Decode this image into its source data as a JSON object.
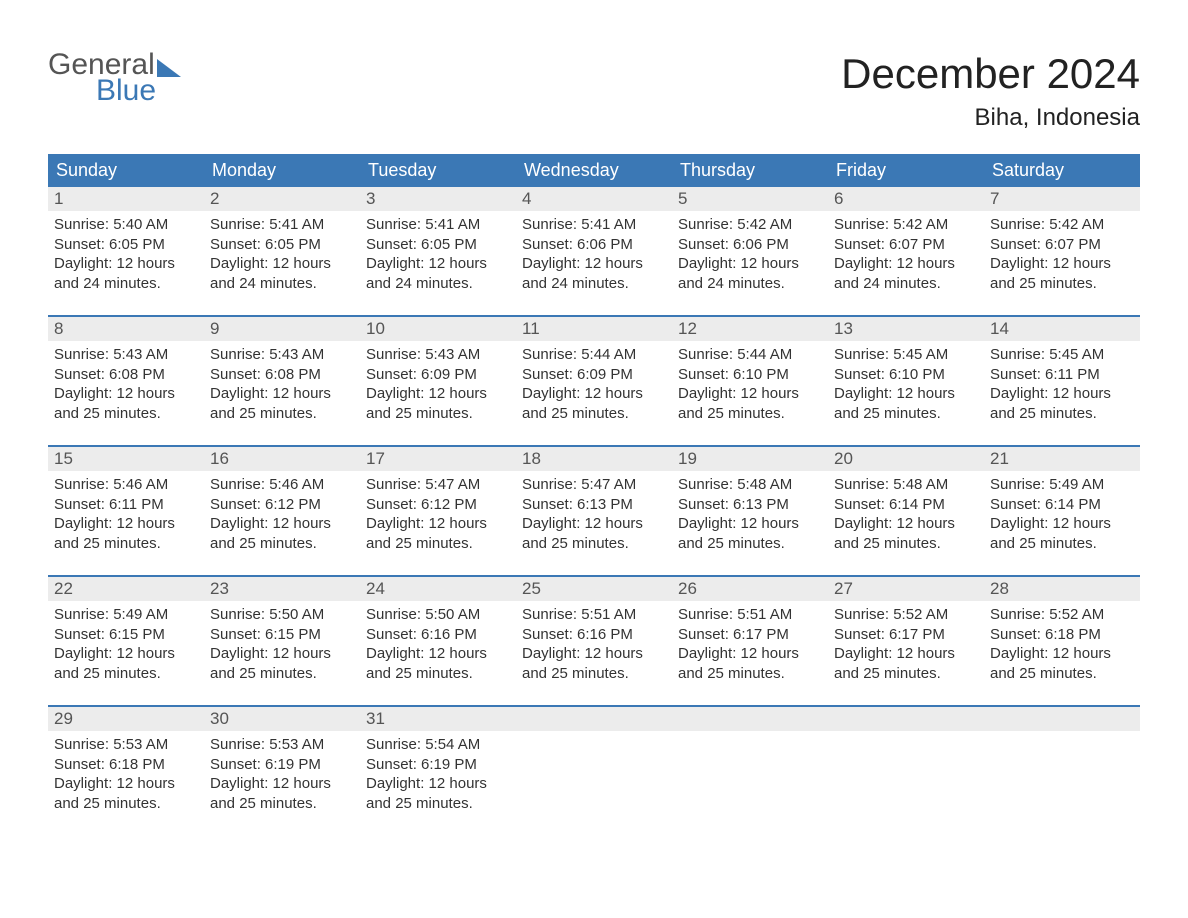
{
  "brand": {
    "word1": "General",
    "word2": "Blue"
  },
  "title": "December 2024",
  "location": "Biha, Indonesia",
  "colors": {
    "brand_blue": "#3b78b5",
    "header_bg": "#3b78b5",
    "header_text": "#ffffff",
    "daynum_bg": "#ececec",
    "daynum_text": "#555555",
    "body_text": "#333333",
    "page_bg": "#ffffff",
    "week_border": "#3b78b5"
  },
  "typography": {
    "title_fontsize": 42,
    "location_fontsize": 24,
    "weekday_fontsize": 18,
    "daynum_fontsize": 17,
    "body_fontsize": 15
  },
  "layout": {
    "columns": 7,
    "week_border_width": 2,
    "day_min_height": 128
  },
  "weekdays": [
    "Sunday",
    "Monday",
    "Tuesday",
    "Wednesday",
    "Thursday",
    "Friday",
    "Saturday"
  ],
  "labels": {
    "sunrise": "Sunrise:",
    "sunset": "Sunset:",
    "daylight": "Daylight:"
  },
  "weeks": [
    [
      {
        "n": "1",
        "sunrise": "5:40 AM",
        "sunset": "6:05 PM",
        "daylight": "12 hours and 24 minutes."
      },
      {
        "n": "2",
        "sunrise": "5:41 AM",
        "sunset": "6:05 PM",
        "daylight": "12 hours and 24 minutes."
      },
      {
        "n": "3",
        "sunrise": "5:41 AM",
        "sunset": "6:05 PM",
        "daylight": "12 hours and 24 minutes."
      },
      {
        "n": "4",
        "sunrise": "5:41 AM",
        "sunset": "6:06 PM",
        "daylight": "12 hours and 24 minutes."
      },
      {
        "n": "5",
        "sunrise": "5:42 AM",
        "sunset": "6:06 PM",
        "daylight": "12 hours and 24 minutes."
      },
      {
        "n": "6",
        "sunrise": "5:42 AM",
        "sunset": "6:07 PM",
        "daylight": "12 hours and 24 minutes."
      },
      {
        "n": "7",
        "sunrise": "5:42 AM",
        "sunset": "6:07 PM",
        "daylight": "12 hours and 25 minutes."
      }
    ],
    [
      {
        "n": "8",
        "sunrise": "5:43 AM",
        "sunset": "6:08 PM",
        "daylight": "12 hours and 25 minutes."
      },
      {
        "n": "9",
        "sunrise": "5:43 AM",
        "sunset": "6:08 PM",
        "daylight": "12 hours and 25 minutes."
      },
      {
        "n": "10",
        "sunrise": "5:43 AM",
        "sunset": "6:09 PM",
        "daylight": "12 hours and 25 minutes."
      },
      {
        "n": "11",
        "sunrise": "5:44 AM",
        "sunset": "6:09 PM",
        "daylight": "12 hours and 25 minutes."
      },
      {
        "n": "12",
        "sunrise": "5:44 AM",
        "sunset": "6:10 PM",
        "daylight": "12 hours and 25 minutes."
      },
      {
        "n": "13",
        "sunrise": "5:45 AM",
        "sunset": "6:10 PM",
        "daylight": "12 hours and 25 minutes."
      },
      {
        "n": "14",
        "sunrise": "5:45 AM",
        "sunset": "6:11 PM",
        "daylight": "12 hours and 25 minutes."
      }
    ],
    [
      {
        "n": "15",
        "sunrise": "5:46 AM",
        "sunset": "6:11 PM",
        "daylight": "12 hours and 25 minutes."
      },
      {
        "n": "16",
        "sunrise": "5:46 AM",
        "sunset": "6:12 PM",
        "daylight": "12 hours and 25 minutes."
      },
      {
        "n": "17",
        "sunrise": "5:47 AM",
        "sunset": "6:12 PM",
        "daylight": "12 hours and 25 minutes."
      },
      {
        "n": "18",
        "sunrise": "5:47 AM",
        "sunset": "6:13 PM",
        "daylight": "12 hours and 25 minutes."
      },
      {
        "n": "19",
        "sunrise": "5:48 AM",
        "sunset": "6:13 PM",
        "daylight": "12 hours and 25 minutes."
      },
      {
        "n": "20",
        "sunrise": "5:48 AM",
        "sunset": "6:14 PM",
        "daylight": "12 hours and 25 minutes."
      },
      {
        "n": "21",
        "sunrise": "5:49 AM",
        "sunset": "6:14 PM",
        "daylight": "12 hours and 25 minutes."
      }
    ],
    [
      {
        "n": "22",
        "sunrise": "5:49 AM",
        "sunset": "6:15 PM",
        "daylight": "12 hours and 25 minutes."
      },
      {
        "n": "23",
        "sunrise": "5:50 AM",
        "sunset": "6:15 PM",
        "daylight": "12 hours and 25 minutes."
      },
      {
        "n": "24",
        "sunrise": "5:50 AM",
        "sunset": "6:16 PM",
        "daylight": "12 hours and 25 minutes."
      },
      {
        "n": "25",
        "sunrise": "5:51 AM",
        "sunset": "6:16 PM",
        "daylight": "12 hours and 25 minutes."
      },
      {
        "n": "26",
        "sunrise": "5:51 AM",
        "sunset": "6:17 PM",
        "daylight": "12 hours and 25 minutes."
      },
      {
        "n": "27",
        "sunrise": "5:52 AM",
        "sunset": "6:17 PM",
        "daylight": "12 hours and 25 minutes."
      },
      {
        "n": "28",
        "sunrise": "5:52 AM",
        "sunset": "6:18 PM",
        "daylight": "12 hours and 25 minutes."
      }
    ],
    [
      {
        "n": "29",
        "sunrise": "5:53 AM",
        "sunset": "6:18 PM",
        "daylight": "12 hours and 25 minutes."
      },
      {
        "n": "30",
        "sunrise": "5:53 AM",
        "sunset": "6:19 PM",
        "daylight": "12 hours and 25 minutes."
      },
      {
        "n": "31",
        "sunrise": "5:54 AM",
        "sunset": "6:19 PM",
        "daylight": "12 hours and 25 minutes."
      },
      {
        "empty": true
      },
      {
        "empty": true
      },
      {
        "empty": true
      },
      {
        "empty": true
      }
    ]
  ]
}
